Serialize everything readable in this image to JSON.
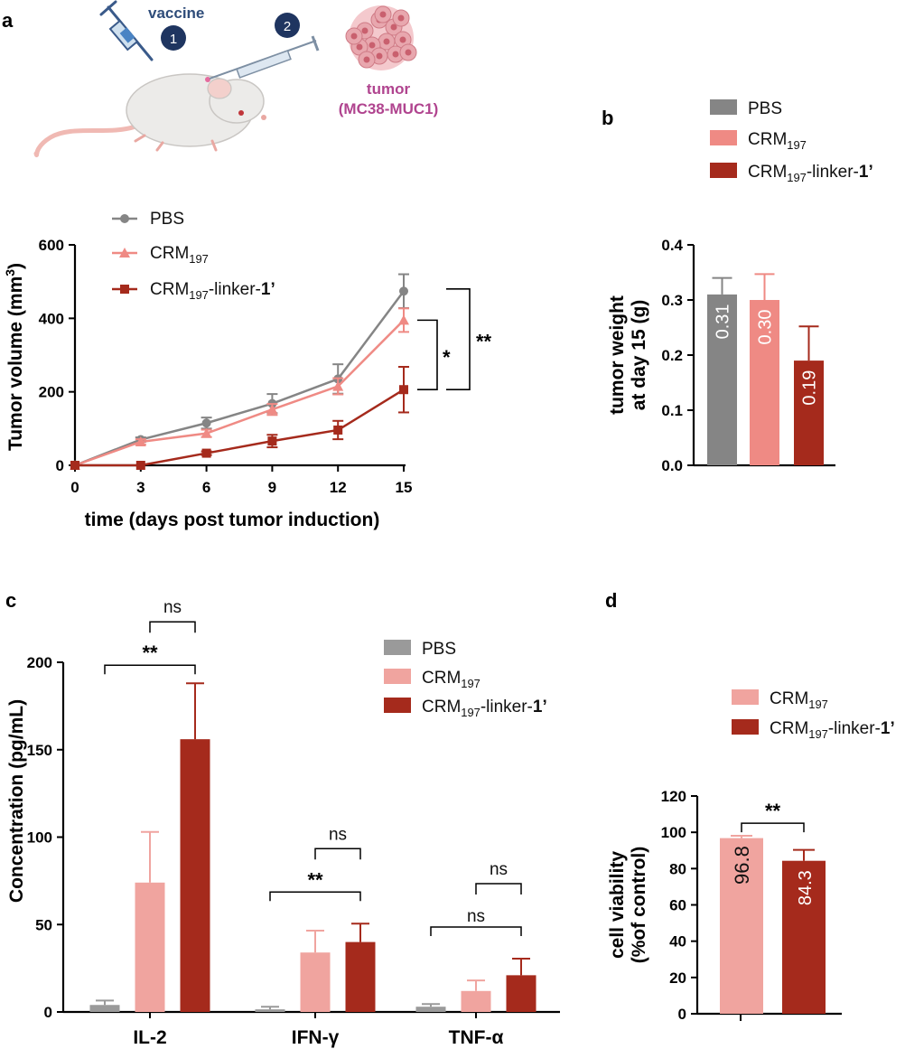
{
  "colors": {
    "pbs": "#858585",
    "crm": "#ef8a84",
    "conj": "#a52a1c",
    "crm_light": "#f0a49f",
    "pbs_light": "#9a9a9a"
  },
  "panel_labels": {
    "a": "a",
    "b": "b",
    "c": "c",
    "d": "d"
  },
  "illustration": {
    "vaccine": "vaccine",
    "step1": "1",
    "step2": "2",
    "tumor": "tumor",
    "tumor_line": "(MC38-MUC1)"
  },
  "legend_common": {
    "pbs": "PBS",
    "crm_main": "CRM",
    "crm_sub": "197",
    "conj_suffix": "-linker-",
    "conj_bold": "1’"
  },
  "chart_data": [
    {
      "id": "tumor-volume",
      "type": "line",
      "xlabel": "time (days post tumor induction)",
      "ylabel": "Tumor volume (mm3)",
      "ylabel_main": "Tumor volume (mm",
      "ylabel_sup": "3",
      "ylabel_end": ")",
      "xlim": [
        0,
        15
      ],
      "ylim": [
        0,
        600
      ],
      "xticks": [
        0,
        3,
        6,
        9,
        12,
        15
      ],
      "yticks": [
        0,
        200,
        400,
        600
      ],
      "x": [
        0,
        3,
        6,
        9,
        12,
        15
      ],
      "series": [
        {
          "name": "PBS",
          "marker": "circle",
          "values": [
            0,
            70,
            115,
            168,
            235,
            474
          ],
          "err": [
            0,
            6,
            15,
            26,
            40,
            46
          ]
        },
        {
          "name": "CRM197",
          "marker": "triangle",
          "values": [
            0,
            64,
            87,
            152,
            215,
            395
          ],
          "err": [
            0,
            7,
            10,
            15,
            22,
            32
          ]
        },
        {
          "name": "CRM197-linker-1’",
          "marker": "square",
          "values": [
            0,
            0,
            33,
            66,
            96,
            206
          ],
          "err": [
            0,
            0,
            5,
            17,
            25,
            62
          ]
        }
      ],
      "significance": [
        {
          "label": "*",
          "pair": [
            "CRM197",
            "CRM197-linker-1’"
          ],
          "at_x": 15
        },
        {
          "label": "**",
          "pair": [
            "PBS",
            "CRM197-linker-1’"
          ],
          "at_x": 15
        }
      ]
    },
    {
      "id": "tumor-weight",
      "type": "bar",
      "ylabel_line1": "tumor weight",
      "ylabel_line2": "at day 15 (g)",
      "ylim": [
        0,
        0.4
      ],
      "yticks": [
        "0.0",
        "0.1",
        "0.2",
        "0.3",
        "0.4"
      ],
      "categories": [
        "PBS",
        "CRM197",
        "CRM197-linker-1’"
      ],
      "values": [
        0.31,
        0.3,
        0.19
      ],
      "labels": [
        "0.31",
        "0.30",
        "0.19"
      ],
      "err": [
        0.03,
        0.047,
        0.062
      ]
    },
    {
      "id": "cytokines",
      "type": "bar",
      "ylabel": "Concentration (pg/mL)",
      "ylim": [
        0,
        200
      ],
      "yticks": [
        0,
        50,
        100,
        150,
        200
      ],
      "categories": [
        "IL-2",
        "IFN-γ",
        "TNF-α"
      ],
      "series": [
        {
          "name": "PBS",
          "values": [
            4,
            1.5,
            3
          ],
          "err": [
            2.5,
            1.5,
            1.5
          ]
        },
        {
          "name": "CRM197",
          "values": [
            74,
            34,
            12
          ],
          "err": [
            29,
            12.5,
            6
          ]
        },
        {
          "name": "CRM197-linker-1’",
          "values": [
            156,
            40,
            21
          ],
          "err": [
            32,
            10.5,
            9.5
          ]
        }
      ],
      "significance": [
        {
          "category": "IL-2",
          "top": "ns",
          "bottom": "**"
        },
        {
          "category": "IFN-γ",
          "top": "ns",
          "bottom": "**"
        },
        {
          "category": "TNF-α",
          "top": "ns",
          "bottom": "ns"
        }
      ]
    },
    {
      "id": "cell-viability",
      "type": "bar",
      "ylabel_line1": "cell viability",
      "ylabel_line2": "(%of control)",
      "ylim": [
        0,
        120
      ],
      "yticks": [
        0,
        20,
        40,
        60,
        80,
        100,
        120
      ],
      "categories": [
        "CRM197",
        "CRM197-linker-1’"
      ],
      "values": [
        96.8,
        84.3
      ],
      "labels": [
        "96.8",
        "84.3"
      ],
      "err": [
        1.3,
        6
      ],
      "significance": "**"
    }
  ]
}
